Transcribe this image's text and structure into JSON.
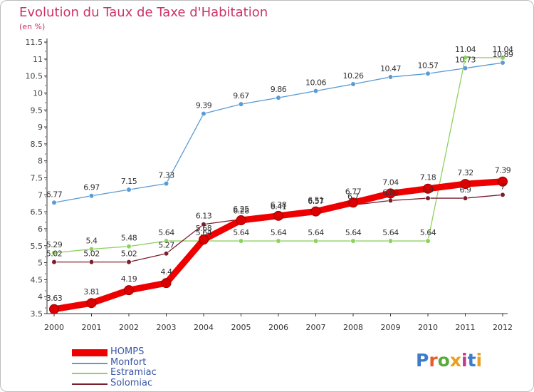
{
  "chart_title": "Evolution du Taux de Taxe d'Habitation",
  "chart_subtitle": "(en %)",
  "brand": {
    "text": "Proxiti",
    "letter_colors": [
      "#3d7cc9",
      "#e85c2b",
      "#5aaa3c",
      "#e8a020",
      "#c23a8a",
      "#3d7cc9",
      "#e8a020"
    ]
  },
  "chart_data": {
    "type": "line",
    "title": "Evolution du Taux de Taxe d'Habitation",
    "subtitle": "(en %)",
    "xlabel": "",
    "ylabel": "",
    "x": [
      "2000",
      "2001",
      "2002",
      "2003",
      "2004",
      "2005",
      "2006",
      "2007",
      "2008",
      "2009",
      "2010",
      "2011",
      "2012"
    ],
    "ylim": [
      3.5,
      11.5
    ],
    "yticks": [
      "3.5",
      "4",
      "4.5",
      "5",
      "5.5",
      "6",
      "6.5",
      "7",
      "7.5",
      "8",
      "8.5",
      "9",
      "9.5",
      "10",
      "10.5",
      "11",
      "11.5"
    ],
    "grid": false,
    "legend_position": "bottom-left",
    "series": [
      {
        "name": "HOMPS",
        "color": "#ee0000",
        "values": [
          3.63,
          3.81,
          4.19,
          4.4,
          5.68,
          6.25,
          6.38,
          6.51,
          6.77,
          7.04,
          7.18,
          7.32,
          7.39
        ],
        "labels": [
          "3.63",
          "3.81",
          "4.19",
          "4.4",
          "5.68",
          "6.25",
          "6.38",
          "6.51",
          "6.77",
          "7.04",
          "7.18",
          "7.32",
          "7.39"
        ]
      },
      {
        "name": "Monfort",
        "color": "#5b9bd5",
        "values": [
          6.77,
          6.97,
          7.15,
          7.33,
          9.39,
          9.67,
          9.86,
          10.06,
          10.26,
          10.47,
          10.57,
          10.73,
          10.89
        ],
        "labels": [
          "6.77",
          "6.97",
          "7.15",
          "7.33",
          "9.39",
          "9.67",
          "9.86",
          "10.06",
          "10.26",
          "10.47",
          "10.57",
          "10.73",
          "10.89"
        ]
      },
      {
        "name": "Estramiac",
        "color": "#8ed160",
        "values": [
          5.29,
          5.4,
          5.48,
          5.64,
          5.64,
          5.64,
          5.64,
          5.64,
          5.64,
          5.64,
          5.64,
          11.04,
          11.04
        ],
        "labels": [
          "5.29",
          "5.4",
          "5.48",
          "5.64",
          "5.64",
          "5.64",
          "5.64",
          "5.64",
          "5.64",
          "5.64",
          "5.64",
          "11.04",
          "11.04"
        ]
      },
      {
        "name": "Solomiac",
        "color": "#7a1f2e",
        "values": [
          5.02,
          5.02,
          5.02,
          5.27,
          6.13,
          6.28,
          6.41,
          6.57,
          6.7,
          6.83,
          6.9,
          6.9,
          7.0
        ],
        "labels": [
          "5.02",
          "5.02",
          "5.02",
          "5.27",
          "6.13",
          "6.28",
          "6.41",
          "6.57",
          "6.7",
          "6.83",
          "6.9",
          "6.9",
          "7"
        ]
      }
    ]
  }
}
